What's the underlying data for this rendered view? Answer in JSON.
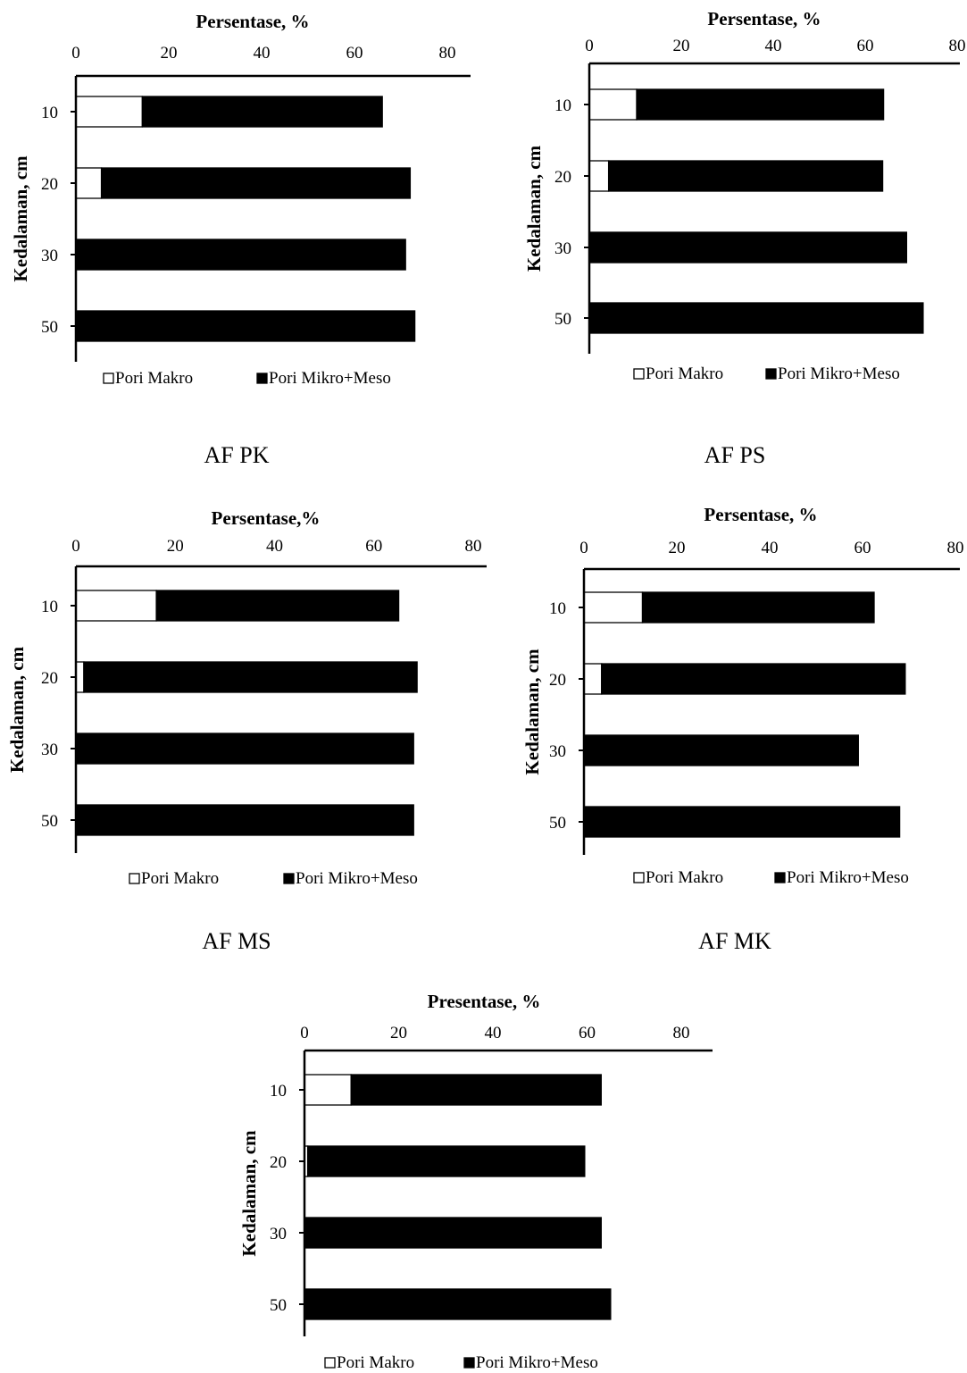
{
  "chart_data": [
    {
      "type": "bar",
      "stacked": true,
      "orientation": "horizontal",
      "title": "",
      "xlabel": "Persentase, %",
      "ylabel": "Kedalaman, cm",
      "xlim": [
        0,
        80
      ],
      "x_ticks": [
        "0",
        "20",
        "40",
        "60",
        "80"
      ],
      "categories": [
        "10",
        "20",
        "30",
        "50"
      ],
      "series": [
        {
          "name": "Pori Makro",
          "color": "#ffffff",
          "values": [
            14.3,
            5.5,
            0.0,
            0.0
          ]
        },
        {
          "name": "Pori Mikro+Meso",
          "color": "#000000",
          "values": [
            51.7,
            66.5,
            71.0,
            73.0
          ]
        }
      ],
      "legend": "bottom",
      "caption": "AF PK"
    },
    {
      "type": "bar",
      "stacked": true,
      "orientation": "horizontal",
      "title": "",
      "xlabel": "Persentase, %",
      "ylabel": "Kedalaman, cm",
      "xlim": [
        0,
        80
      ],
      "x_ticks": [
        "0",
        "20",
        "40",
        "60",
        "80"
      ],
      "categories": [
        "10",
        "20",
        "30",
        "50"
      ],
      "series": [
        {
          "name": "Pori Makro",
          "color": "#ffffff",
          "values": [
            10.3,
            4.2,
            0.0,
            0.0
          ]
        },
        {
          "name": "Pori Mikro+Meso",
          "color": "#000000",
          "values": [
            53.7,
            59.6,
            69.0,
            72.6
          ]
        }
      ],
      "legend": "bottom",
      "caption": "AF PS"
    },
    {
      "type": "bar",
      "stacked": true,
      "orientation": "horizontal",
      "title": "",
      "xlabel": "Persentase,%",
      "ylabel": "Kedalaman, cm",
      "xlim": [
        0,
        80
      ],
      "x_ticks": [
        "0",
        "20",
        "40",
        "60",
        "80"
      ],
      "categories": [
        "10",
        "20",
        "30",
        "50"
      ],
      "series": [
        {
          "name": "Pori Makro",
          "color": "#ffffff",
          "values": [
            16.2,
            1.6,
            0.0,
            0.0
          ]
        },
        {
          "name": "Pori Mikro+Meso",
          "color": "#000000",
          "values": [
            48.8,
            67.1,
            68.0,
            68.0
          ]
        }
      ],
      "legend": "bottom",
      "caption": "AF MS"
    },
    {
      "type": "bar",
      "stacked": true,
      "orientation": "horizontal",
      "title": "",
      "xlabel": "Persentase, %",
      "ylabel": "Kedalaman, cm",
      "xlim": [
        0,
        80
      ],
      "x_ticks": [
        "0",
        "20",
        "40",
        "60",
        "80"
      ],
      "categories": [
        "10",
        "20",
        "30",
        "50"
      ],
      "series": [
        {
          "name": "Pori Makro",
          "color": "#ffffff",
          "values": [
            12.6,
            3.8,
            0.0,
            0.0
          ]
        },
        {
          "name": "Pori Mikro+Meso",
          "color": "#000000",
          "values": [
            49.9,
            65.4,
            59.1,
            68.0
          ]
        }
      ],
      "legend": "bottom",
      "caption": "AF MK"
    },
    {
      "type": "bar",
      "stacked": true,
      "orientation": "horizontal",
      "title": "",
      "xlabel": "Presentase, %",
      "ylabel": "Kedalaman, cm",
      "xlim": [
        0,
        80
      ],
      "x_ticks": [
        "0",
        "20",
        "40",
        "60",
        "80"
      ],
      "categories": [
        "10",
        "20",
        "30",
        "50"
      ],
      "series": [
        {
          "name": "Pori Makro",
          "color": "#ffffff",
          "values": [
            9.9,
            0.7,
            0.0,
            0.0
          ]
        },
        {
          "name": "Pori Mikro+Meso",
          "color": "#000000",
          "values": [
            53.1,
            58.8,
            63.0,
            65.0
          ]
        }
      ],
      "legend": "bottom",
      "caption": ""
    }
  ]
}
